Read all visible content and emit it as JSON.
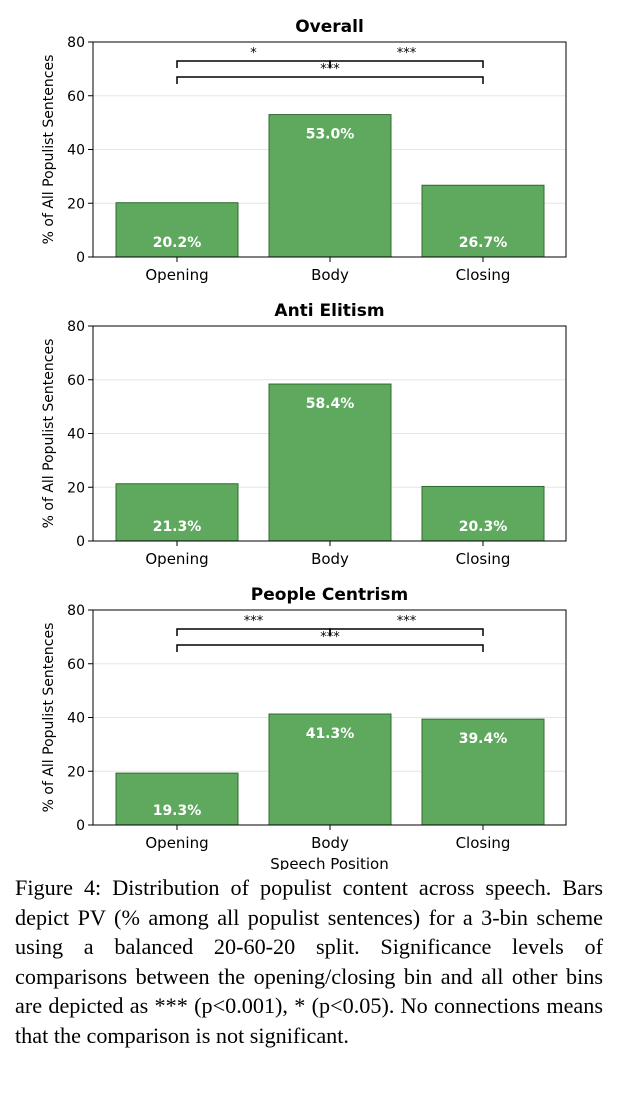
{
  "chart_data": [
    {
      "type": "bar",
      "title": "Overall",
      "categories": [
        "Opening",
        "Body",
        "Closing"
      ],
      "values": [
        20.2,
        53.0,
        26.7
      ],
      "value_labels": [
        "20.2%",
        "53.0%",
        "26.7%"
      ],
      "ylabel": "% of All Populist Sentences",
      "xlabel": "",
      "ylim": [
        0,
        80
      ],
      "yticks": [
        0,
        20,
        40,
        60,
        80
      ],
      "bar_color": "#5ea95e",
      "grid": true,
      "significance": [
        {
          "from": 0,
          "to": 2,
          "label": "***",
          "level": 2
        },
        {
          "from": 0,
          "to": 1,
          "label": "*",
          "level": 1
        },
        {
          "from": 1,
          "to": 2,
          "label": "***",
          "level": 1
        }
      ]
    },
    {
      "type": "bar",
      "title": "Anti Elitism",
      "categories": [
        "Opening",
        "Body",
        "Closing"
      ],
      "values": [
        21.3,
        58.4,
        20.3
      ],
      "value_labels": [
        "21.3%",
        "58.4%",
        "20.3%"
      ],
      "ylabel": "% of All Populist Sentences",
      "xlabel": "",
      "ylim": [
        0,
        80
      ],
      "yticks": [
        0,
        20,
        40,
        60,
        80
      ],
      "bar_color": "#5ea95e",
      "grid": true,
      "significance": []
    },
    {
      "type": "bar",
      "title": "People Centrism",
      "categories": [
        "Opening",
        "Body",
        "Closing"
      ],
      "values": [
        19.3,
        41.3,
        39.4
      ],
      "value_labels": [
        "19.3%",
        "41.3%",
        "39.4%"
      ],
      "ylabel": "% of All Populist Sentences",
      "xlabel": "Speech Position",
      "ylim": [
        0,
        80
      ],
      "yticks": [
        0,
        20,
        40,
        60,
        80
      ],
      "bar_color": "#5ea95e",
      "grid": true,
      "significance": [
        {
          "from": 0,
          "to": 2,
          "label": "***",
          "level": 2
        },
        {
          "from": 0,
          "to": 1,
          "label": "***",
          "level": 1
        },
        {
          "from": 1,
          "to": 2,
          "label": "***",
          "level": 1
        }
      ]
    }
  ],
  "caption": "Figure 4: Distribution of populist content across speech. Bars depict PV (% among all populist sentences) for a 3-bin scheme using a balanced 20-60-20 split. Significance levels of comparisons between the opening/closing bin and all other bins are depicted as *** (p<0.001), * (p<0.05). No connections means that the comparison is not significant."
}
